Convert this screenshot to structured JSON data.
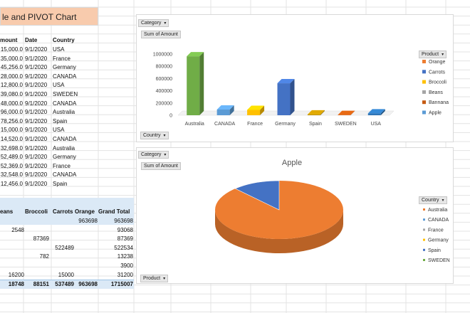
{
  "colors": {
    "orange": "#ed7d31",
    "carrots": "#4472c4",
    "broccoli": "#ffc000",
    "beans": "#a5a5a5",
    "bannana": "#c55a11",
    "apple": "#5b9bd5",
    "australia_bar": "#70ad47",
    "canada_bar": "#5b9bd5",
    "france_bar": "#ffc000",
    "germany_bar": "#4472c4",
    "spain_bar": "#bf9000",
    "sweden_bar": "#c55a11",
    "usa_bar": "#2e75b6",
    "title_banner_fill": "#f8cbad",
    "pivot_header_fill": "#dbe9f6"
  },
  "sheet": {
    "title": "le and PIVOT Chart",
    "columns": [
      "mount",
      "Date",
      "Country"
    ],
    "rows": [
      [
        "15,000.0",
        "9/1/2020",
        "USA"
      ],
      [
        "35,000.0",
        "9/1/2020",
        "France"
      ],
      [
        "45,256.0",
        "9/1/2020",
        "Germany"
      ],
      [
        "28,000.0",
        "9/1/2020",
        "CANADA"
      ],
      [
        "12,800.0",
        "9/1/2020",
        "USA"
      ],
      [
        "39,080.0",
        "9/1/2020",
        "SWEDEN"
      ],
      [
        "48,000.0",
        "9/1/2020",
        "CANADA"
      ],
      [
        "96,000.0",
        "9/1/2020",
        "Australia"
      ],
      [
        "78,256.0",
        "9/1/2020",
        "Spain"
      ],
      [
        "15,000.0",
        "9/1/2020",
        "USA"
      ],
      [
        "14,520.0",
        "9/1/2020",
        "CANADA"
      ],
      [
        "32,698.0",
        "9/1/2020",
        "Australia"
      ],
      [
        "52,489.0",
        "9/1/2020",
        "Germany"
      ],
      [
        "52,369.0",
        "9/1/2020",
        "France"
      ],
      [
        "32,548.0",
        "9/1/2020",
        "CANADA"
      ],
      [
        "12,456.0",
        "9/1/2020",
        "Spain"
      ]
    ]
  },
  "pivot": {
    "headers": [
      "eans",
      "Broccoli",
      "Carrots",
      "Orange",
      "Grand Total"
    ],
    "rows": [
      [
        "",
        "",
        "",
        "963698",
        "963698"
      ],
      [
        "2548",
        "",
        "",
        "",
        "93068"
      ],
      [
        "",
        "87369",
        "",
        "",
        "87369"
      ],
      [
        "",
        "",
        "522489",
        "",
        "522534"
      ],
      [
        "",
        "782",
        "",
        "",
        "13238"
      ],
      [
        "",
        "",
        "",
        "",
        "3900"
      ],
      [
        "16200",
        "",
        "15000",
        "",
        "31200"
      ]
    ],
    "totals": [
      "18748",
      "88151",
      "537489",
      "963698",
      "1715007"
    ]
  },
  "bar_chart_ui": {
    "category_button": "Category",
    "value_label": "Sum of Amount",
    "axis_button": "Country",
    "legend_button": "Product"
  },
  "pie_chart_ui": {
    "category_button": "Category",
    "value_label": "Sum of Amount",
    "axis_button": "Product",
    "legend_button": "Country"
  },
  "chart_data": [
    {
      "type": "bar",
      "title": "",
      "categories": [
        "Australia",
        "CANADA",
        "France",
        "Germany",
        "Spain",
        "SWEDEN",
        "USA"
      ],
      "values": [
        963698,
        93068,
        87369,
        522534,
        13238,
        3900,
        31200
      ],
      "ylim": [
        0,
        1000000
      ],
      "yticks": [
        "0",
        "200000",
        "400000",
        "600000",
        "800000",
        "1000000"
      ],
      "legend": [
        "Orange",
        "Carrots",
        "Broccoli",
        "Beans",
        "Bannana",
        "Apple"
      ],
      "legend_placement": "right",
      "grid": false
    },
    {
      "type": "pie",
      "title": "Apple",
      "slices": [
        {
          "name": "Australia",
          "value": 0.88
        },
        {
          "name": "SWEDEN",
          "value": 0.12
        }
      ],
      "legend": [
        "Australia",
        "CANADA",
        "France",
        "Germany",
        "Spain",
        "SWEDEN"
      ],
      "legend_placement": "right"
    }
  ]
}
